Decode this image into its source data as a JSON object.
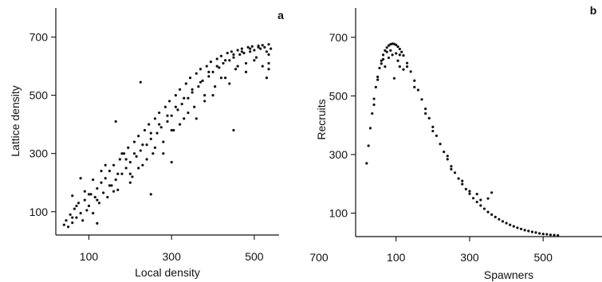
{
  "chart_data": [
    {
      "type": "scatter",
      "panel": "a",
      "title": "",
      "xlabel": "Local density",
      "ylabel": "Lattice density",
      "xlim": [
        20,
        560
      ],
      "ylim": [
        20,
        800
      ],
      "xticks": [
        100,
        300,
        500
      ],
      "yticks": [
        100,
        300,
        500,
        700
      ],
      "grid": false,
      "points": [
        [
          40,
          55
        ],
        [
          45,
          70
        ],
        [
          50,
          48
        ],
        [
          55,
          90
        ],
        [
          60,
          62
        ],
        [
          65,
          110
        ],
        [
          70,
          80
        ],
        [
          75,
          130
        ],
        [
          80,
          95
        ],
        [
          85,
          70
        ],
        [
          90,
          140
        ],
        [
          95,
          105
        ],
        [
          100,
          120
        ],
        [
          105,
          160
        ],
        [
          110,
          95
        ],
        [
          115,
          150
        ],
        [
          120,
          180
        ],
        [
          125,
          130
        ],
        [
          130,
          200
        ],
        [
          135,
          165
        ],
        [
          140,
          215
        ],
        [
          145,
          150
        ],
        [
          150,
          240
        ],
        [
          155,
          190
        ],
        [
          160,
          260
        ],
        [
          165,
          210
        ],
        [
          170,
          175
        ],
        [
          175,
          280
        ],
        [
          180,
          230
        ],
        [
          185,
          300
        ],
        [
          190,
          250
        ],
        [
          195,
          320
        ],
        [
          200,
          270
        ],
        [
          205,
          220
        ],
        [
          210,
          340
        ],
        [
          215,
          290
        ],
        [
          220,
          360
        ],
        [
          225,
          310
        ],
        [
          230,
          260
        ],
        [
          235,
          380
        ],
        [
          240,
          330
        ],
        [
          245,
          400
        ],
        [
          250,
          350
        ],
        [
          255,
          300
        ],
        [
          260,
          420
        ],
        [
          265,
          370
        ],
        [
          270,
          440
        ],
        [
          275,
          390
        ],
        [
          280,
          340
        ],
        [
          285,
          460
        ],
        [
          290,
          410
        ],
        [
          295,
          480
        ],
        [
          300,
          430
        ],
        [
          305,
          380
        ],
        [
          310,
          500
        ],
        [
          315,
          450
        ],
        [
          320,
          520
        ],
        [
          325,
          470
        ],
        [
          330,
          420
        ],
        [
          335,
          540
        ],
        [
          340,
          490
        ],
        [
          345,
          560
        ],
        [
          350,
          510
        ],
        [
          355,
          460
        ],
        [
          360,
          575
        ],
        [
          365,
          530
        ],
        [
          370,
          590
        ],
        [
          375,
          550
        ],
        [
          380,
          500
        ],
        [
          385,
          600
        ],
        [
          390,
          565
        ],
        [
          395,
          615
        ],
        [
          400,
          580
        ],
        [
          405,
          530
        ],
        [
          410,
          625
        ],
        [
          415,
          595
        ],
        [
          420,
          635
        ],
        [
          425,
          610
        ],
        [
          430,
          560
        ],
        [
          435,
          645
        ],
        [
          440,
          620
        ],
        [
          445,
          650
        ],
        [
          450,
          630
        ],
        [
          455,
          590
        ],
        [
          460,
          655
        ],
        [
          465,
          640
        ],
        [
          470,
          660
        ],
        [
          475,
          645
        ],
        [
          480,
          610
        ],
        [
          485,
          665
        ],
        [
          490,
          650
        ],
        [
          495,
          668
        ],
        [
          500,
          655
        ],
        [
          505,
          630
        ],
        [
          510,
          670
        ],
        [
          515,
          660
        ],
        [
          520,
          672
        ],
        [
          525,
          665
        ],
        [
          530,
          650
        ],
        [
          535,
          675
        ],
        [
          535,
          640
        ],
        [
          535,
          610
        ],
        [
          535,
          590
        ],
        [
          530,
          560
        ],
        [
          540,
          660
        ],
        [
          450,
          380
        ],
        [
          300,
          270
        ],
        [
          250,
          160
        ],
        [
          165,
          410
        ],
        [
          225,
          545
        ],
        [
          60,
          155
        ],
        [
          80,
          215
        ],
        [
          120,
          60
        ],
        [
          70,
          120
        ],
        [
          90,
          170
        ],
        [
          110,
          210
        ],
        [
          130,
          240
        ],
        [
          150,
          190
        ],
        [
          170,
          230
        ],
        [
          190,
          280
        ],
        [
          210,
          300
        ],
        [
          230,
          330
        ],
        [
          250,
          370
        ],
        [
          270,
          400
        ],
        [
          290,
          430
        ],
        [
          310,
          460
        ],
        [
          330,
          490
        ],
        [
          350,
          520
        ],
        [
          370,
          545
        ],
        [
          390,
          580
        ],
        [
          410,
          600
        ],
        [
          430,
          620
        ],
        [
          450,
          640
        ],
        [
          470,
          650
        ],
        [
          490,
          660
        ],
        [
          510,
          665
        ],
        [
          100,
          160
        ],
        [
          140,
          260
        ],
        [
          180,
          300
        ],
        [
          220,
          250
        ],
        [
          260,
          320
        ],
        [
          300,
          380
        ],
        [
          340,
          440
        ],
        [
          380,
          480
        ],
        [
          420,
          560
        ],
        [
          460,
          600
        ],
        [
          500,
          620
        ],
        [
          200,
          200
        ],
        [
          240,
          280
        ],
        [
          280,
          300
        ],
        [
          320,
          400
        ],
        [
          360,
          420
        ],
        [
          400,
          500
        ],
        [
          440,
          540
        ],
        [
          480,
          580
        ],
        [
          520,
          600
        ],
        [
          60,
          80
        ],
        [
          120,
          140
        ],
        [
          160,
          170
        ],
        [
          200,
          230
        ]
      ]
    },
    {
      "type": "scatter",
      "panel": "b",
      "title": "",
      "xlabel": "Spawners",
      "ylabel": "Recruits",
      "xlim": [
        -10,
        660
      ],
      "ylim": [
        20,
        800
      ],
      "xticks": [
        100,
        300,
        500
      ],
      "yticks": [
        100,
        300,
        500,
        700
      ],
      "outside_tick_label": "700",
      "grid": false,
      "points": [
        [
          20,
          270
        ],
        [
          25,
          330
        ],
        [
          30,
          390
        ],
        [
          35,
          440
        ],
        [
          40,
          490
        ],
        [
          45,
          530
        ],
        [
          50,
          565
        ],
        [
          55,
          595
        ],
        [
          60,
          620
        ],
        [
          65,
          640
        ],
        [
          70,
          655
        ],
        [
          75,
          665
        ],
        [
          80,
          672
        ],
        [
          85,
          676
        ],
        [
          90,
          678
        ],
        [
          95,
          677
        ],
        [
          100,
          674
        ],
        [
          105,
          668
        ],
        [
          110,
          660
        ],
        [
          115,
          650
        ],
        [
          120,
          638
        ],
        [
          130,
          612
        ],
        [
          140,
          583
        ],
        [
          150,
          552
        ],
        [
          160,
          520
        ],
        [
          170,
          488
        ],
        [
          180,
          456
        ],
        [
          190,
          424
        ],
        [
          200,
          394
        ],
        [
          210,
          364
        ],
        [
          220,
          336
        ],
        [
          230,
          309
        ],
        [
          240,
          284
        ],
        [
          250,
          260
        ],
        [
          260,
          238
        ],
        [
          270,
          218
        ],
        [
          280,
          199
        ],
        [
          290,
          182
        ],
        [
          300,
          166
        ],
        [
          310,
          151
        ],
        [
          320,
          138
        ],
        [
          330,
          126
        ],
        [
          340,
          115
        ],
        [
          350,
          104
        ],
        [
          360,
          95
        ],
        [
          370,
          87
        ],
        [
          380,
          79
        ],
        [
          390,
          72
        ],
        [
          400,
          66
        ],
        [
          410,
          60
        ],
        [
          420,
          55
        ],
        [
          430,
          50
        ],
        [
          440,
          46
        ],
        [
          450,
          42
        ],
        [
          460,
          39
        ],
        [
          470,
          36
        ],
        [
          480,
          34
        ],
        [
          490,
          31
        ],
        [
          500,
          29
        ],
        [
          510,
          28
        ],
        [
          520,
          26
        ],
        [
          530,
          25
        ],
        [
          540,
          24
        ],
        [
          70,
          600
        ],
        [
          80,
          630
        ],
        [
          90,
          640
        ],
        [
          100,
          645
        ],
        [
          110,
          600
        ],
        [
          120,
          590
        ],
        [
          95,
          560
        ],
        [
          105,
          620
        ],
        [
          85,
          655
        ],
        [
          75,
          650
        ],
        [
          65,
          625
        ],
        [
          200,
          380
        ],
        [
          250,
          250
        ],
        [
          300,
          175
        ],
        [
          330,
          145
        ],
        [
          350,
          150
        ],
        [
          360,
          170
        ],
        [
          320,
          165
        ],
        [
          280,
          210
        ],
        [
          240,
          295
        ],
        [
          180,
          440
        ],
        [
          150,
          530
        ],
        [
          130,
          600
        ],
        [
          110,
          640
        ],
        [
          60,
          610
        ],
        [
          50,
          555
        ],
        [
          40,
          470
        ]
      ]
    }
  ],
  "labels": {
    "panel_a": "a",
    "panel_b": "b"
  }
}
